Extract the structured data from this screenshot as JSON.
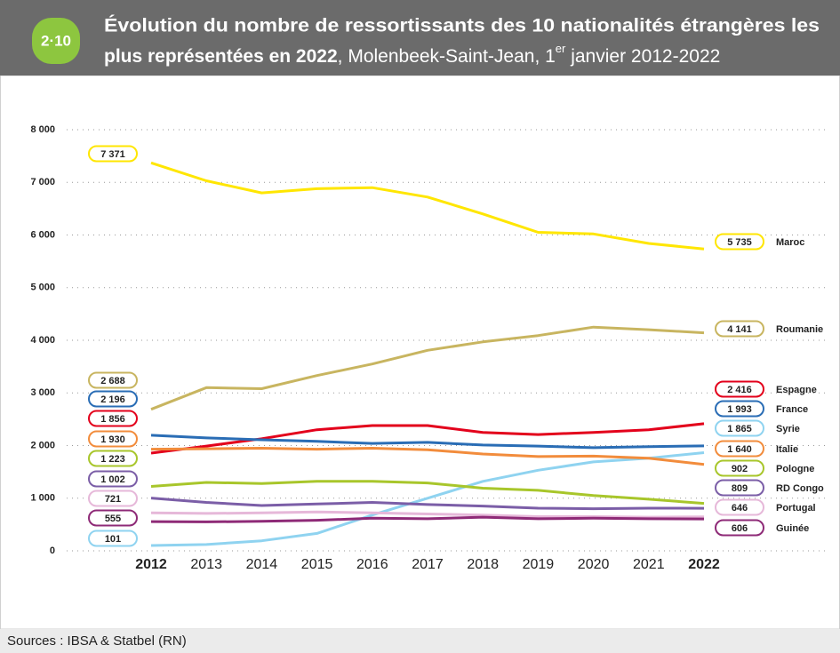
{
  "badge": "2·10",
  "chart_data": {
    "type": "line",
    "title": [
      "Évolution du nombre de ressortissants des 10 nationalités étrangères les",
      "plus représentées en 2022"
    ],
    "subtitle": [
      ", Molenbeek-Saint-Jean, 1",
      "er",
      " janvier 2012-2022"
    ],
    "categories": [
      "2012",
      "2013",
      "2014",
      "2015",
      "2016",
      "2017",
      "2018",
      "2019",
      "2020",
      "2021",
      "2022"
    ],
    "ylim": [
      0,
      8000
    ],
    "yticks": [
      0,
      {
        "value": 1000,
        "label": "1 000"
      },
      {
        "value": 2000,
        "label": "2 000"
      },
      {
        "value": 3000,
        "label": "3 000"
      },
      {
        "value": 4000,
        "label": "4 000"
      },
      {
        "value": 5000,
        "label": "5 000"
      },
      {
        "value": 6000,
        "label": "6 000"
      },
      {
        "value": 7000,
        "label": "7 000"
      },
      {
        "value": 8000,
        "label": "8 000"
      }
    ],
    "grid": true,
    "series": [
      {
        "name": "Maroc",
        "color": "#ffe600",
        "values": [
          7371,
          7030,
          6800,
          6880,
          6900,
          6720,
          6400,
          6050,
          6020,
          5840,
          5735
        ],
        "value_labels": [
          "7 371",
          null,
          null,
          null,
          null,
          null,
          null,
          null,
          null,
          null,
          "5 735"
        ]
      },
      {
        "name": "Roumanie",
        "color": "#c8b560",
        "values": [
          2688,
          3100,
          3080,
          3330,
          3550,
          3810,
          3970,
          4090,
          4250,
          4200,
          4141
        ],
        "value_labels": [
          "2 688",
          null,
          null,
          null,
          null,
          null,
          null,
          null,
          null,
          null,
          "4 141"
        ]
      },
      {
        "name": "Espagne",
        "color": "#e3001b",
        "values": [
          1856,
          1990,
          2130,
          2300,
          2380,
          2380,
          2250,
          2210,
          2250,
          2300,
          2416
        ],
        "value_labels": [
          "1 856",
          null,
          null,
          null,
          null,
          null,
          null,
          null,
          null,
          null,
          "2 416"
        ]
      },
      {
        "name": "France",
        "color": "#2a6db5",
        "values": [
          2196,
          2145,
          2110,
          2080,
          2040,
          2060,
          2010,
          1990,
          1960,
          1980,
          1993
        ],
        "value_labels": [
          "2 196",
          null,
          null,
          null,
          null,
          null,
          null,
          null,
          null,
          null,
          "1 993"
        ]
      },
      {
        "name": "Syrie",
        "color": "#8fd3f0",
        "values": [
          101,
          120,
          190,
          330,
          680,
          1000,
          1320,
          1530,
          1690,
          1760,
          1865
        ],
        "value_labels": [
          "101",
          null,
          null,
          null,
          null,
          null,
          null,
          null,
          null,
          null,
          "1 865"
        ]
      },
      {
        "name": "Italie",
        "color": "#f28c3c",
        "values": [
          1930,
          1940,
          1950,
          1930,
          1950,
          1920,
          1840,
          1790,
          1800,
          1760,
          1640
        ],
        "value_labels": [
          "1 930",
          null,
          null,
          null,
          null,
          null,
          null,
          null,
          null,
          null,
          "1 640"
        ]
      },
      {
        "name": "Pologne",
        "color": "#a8c62b",
        "values": [
          1223,
          1300,
          1280,
          1320,
          1320,
          1290,
          1190,
          1150,
          1050,
          980,
          902
        ],
        "value_labels": [
          "1 223",
          null,
          null,
          null,
          null,
          null,
          null,
          null,
          null,
          null,
          "902"
        ]
      },
      {
        "name": "RD Congo",
        "color": "#7b5ea7",
        "values": [
          1002,
          920,
          860,
          890,
          920,
          880,
          850,
          810,
          800,
          810,
          809
        ],
        "value_labels": [
          "1 002",
          null,
          null,
          null,
          null,
          null,
          null,
          null,
          null,
          null,
          "809"
        ]
      },
      {
        "name": "Portugal",
        "color": "#e6b8d9",
        "values": [
          721,
          710,
          720,
          740,
          720,
          700,
          680,
          650,
          650,
          640,
          646
        ],
        "value_labels": [
          "721",
          null,
          null,
          null,
          null,
          null,
          null,
          null,
          null,
          null,
          "646"
        ]
      },
      {
        "name": "Guinée",
        "color": "#8e2a77",
        "values": [
          555,
          550,
          560,
          580,
          620,
          610,
          640,
          610,
          620,
          610,
          606
        ],
        "value_labels": [
          "555",
          null,
          null,
          null,
          null,
          null,
          null,
          null,
          null,
          null,
          "606"
        ]
      }
    ]
  },
  "footer": "Sources : IBSA & Statbel (RN)"
}
